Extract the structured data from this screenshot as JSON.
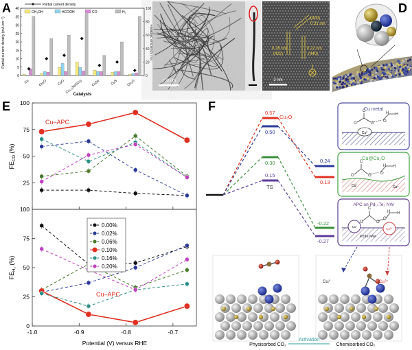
{
  "panel_labels": {
    "A": "A",
    "B": "B",
    "C": "C",
    "D": "D",
    "E": "E",
    "F": "F"
  },
  "panelA": {
    "legend_line": "Partial current density",
    "legend_boxes": [
      {
        "label": "CH₃OH",
        "color": "#f5ea7a"
      },
      {
        "label": "HCOOH",
        "color": "#8fd3ef"
      },
      {
        "label": "CO",
        "color": "#d88ed6"
      },
      {
        "label": "H₂",
        "color": "#bdbdbd"
      }
    ],
    "ylabel_left": "Partial current density (mA cm⁻²)",
    "ylabel_right": "Faradaic efficiency (%)",
    "xlabel": "Catalysts",
    "left_ticks": [
      "0",
      "5",
      "10",
      "15",
      "20",
      "25",
      "30",
      "35",
      "40"
    ],
    "right_ticks": [
      "0",
      "20",
      "40",
      "60",
      "80",
      "100"
    ],
    "categories": [
      "Cu",
      "Cu₂O",
      "CuO",
      "Cu₁.₅Se/(Cu)",
      "CuSe",
      "CuS",
      "Cu₂O"
    ]
  },
  "panelB": {
    "scalebar_text": "100 nm"
  },
  "panelC": {
    "labels": [
      "(400)",
      "0.31 nm",
      "0.26 nm",
      "(422)",
      "0.22 nm",
      "(440)"
    ],
    "scalebar_text": "2 nm"
  },
  "chart_data": [
    {
      "type": "line",
      "title": "",
      "xlabel": "Potential (V) versus RHE",
      "ylabel": "FE_CO (%)",
      "xlim": [
        -1.0,
        -0.65
      ],
      "ylim": [
        0,
        100
      ],
      "x": [
        -0.98,
        -0.88,
        -0.78,
        -0.67
      ],
      "annotation": "Cu–APC",
      "series": [
        {
          "name": "0.00%",
          "color": "#111111",
          "values": [
            18,
            18,
            15,
            13
          ]
        },
        {
          "name": "0.02%",
          "color": "#2b3a9a",
          "values": [
            59,
            64,
            37,
            13
          ]
        },
        {
          "name": "0.06%",
          "color": "#4a7a2a",
          "values": [
            31,
            36,
            69,
            31
          ]
        },
        {
          "name": "0.10%",
          "color": "#e03020",
          "values": [
            73,
            80,
            91,
            65
          ]
        },
        {
          "name": "0.16%",
          "color": "#2a8f86",
          "values": [
            66,
            45,
            63,
            30
          ]
        },
        {
          "name": "0.20%",
          "color": "#c040c0",
          "values": [
            26,
            51,
            61,
            30
          ]
        }
      ]
    },
    {
      "type": "line",
      "title": "",
      "xlabel": "Potential (V) versus RHE",
      "ylabel": "FE_H2 (%)",
      "xlim": [
        -1.0,
        -0.65
      ],
      "ylim": [
        0,
        100
      ],
      "x": [
        -0.98,
        -0.88,
        -0.78,
        -0.67
      ],
      "annotation": "Cu–APC",
      "legend_position": "upper middle",
      "series": [
        {
          "name": "0.00%",
          "color": "#111111",
          "values": [
            86,
            53,
            54,
            68
          ]
        },
        {
          "name": "0.02%",
          "color": "#2b3a9a",
          "values": [
            29,
            37,
            50,
            69
          ]
        },
        {
          "name": "0.06%",
          "color": "#4a7a2a",
          "values": [
            31,
            53,
            33,
            48
          ]
        },
        {
          "name": "0.10%",
          "color": "#e03020",
          "values": [
            30,
            10,
            3,
            17
          ]
        },
        {
          "name": "0.16%",
          "color": "#2a8f86",
          "values": [
            28,
            17,
            31,
            36
          ]
        },
        {
          "name": "0.20%",
          "color": "#c040c0",
          "values": [
            66,
            48,
            31,
            57
          ]
        }
      ]
    }
  ],
  "panelE_ticks": {
    "x": [
      "-1.0",
      "-0.9",
      "-0.8",
      "-0.7"
    ],
    "y_top": [
      "25",
      "50",
      "75",
      "100"
    ],
    "y_bottom": [
      "0",
      "25",
      "50",
      "75",
      "100"
    ]
  },
  "panelF": {
    "energy_labels": {
      "red_ts": "0.57",
      "red_final": "0.13",
      "cu2o": "Cu₂O",
      "navy_ts": "0.50",
      "navy_final": "0.24",
      "green_ts": "0.30",
      "green_final": "-0.22",
      "purple_ts": "0.15",
      "purple_final": "-0.27",
      "ts": "TS"
    },
    "boxes": [
      {
        "title": "Cu metal",
        "sub": "Cu⁰",
        "color": "#4a4aa0"
      },
      {
        "title": "Cu@Cu₂O",
        "sub": "Cu⁺",
        "color": "#3f9f3f"
      },
      {
        "title": "APC on Pd₁₀Te₃ NW",
        "sub": "PdTe NW",
        "color": "#5a3a8a"
      }
    ],
    "box_atoms": {
      "cu0": "Cu⁰",
      "cu_plus": "Cu⁺",
      "cu_i": "Cuᴵ",
      "cu_dplus": "Cuᵟ⁺"
    },
    "atom_labels": [
      "Cuᵢ⁰",
      "Cuᵢᵟ⁺"
    ],
    "bottom_left": "Physisorbed CO₂",
    "bottom_mid": "Activation",
    "bottom_right": "Chemisorbed CO₂"
  }
}
